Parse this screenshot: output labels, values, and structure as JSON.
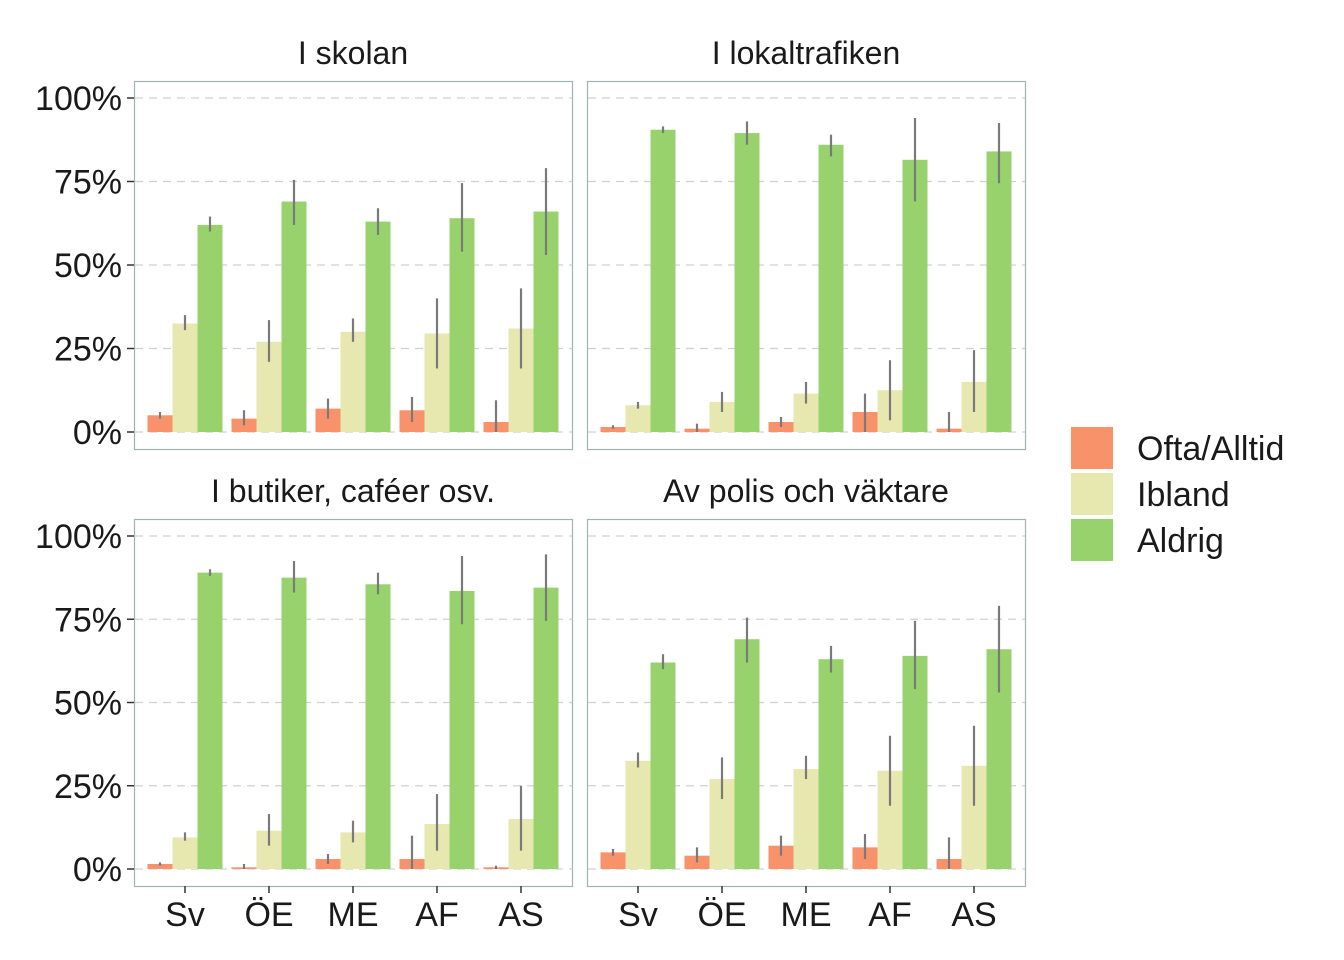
{
  "chart_data": {
    "type": "bar",
    "categories": [
      "Sv",
      "ÖE",
      "ME",
      "AF",
      "AS"
    ],
    "ylim": [
      0,
      100
    ],
    "yticks": [
      "0%",
      "25%",
      "50%",
      "75%",
      "100%"
    ],
    "grid": true,
    "legend_position": "right",
    "legend": [
      {
        "name": "Ofta/Alltid",
        "color": "#f8926a"
      },
      {
        "name": "Ibland",
        "color": "#e6e8b0"
      },
      {
        "name": "Aldrig",
        "color": "#98d26c"
      }
    ],
    "panels": [
      {
        "title": "I skolan",
        "series": [
          {
            "name": "Ofta/Alltid",
            "values": [
              5,
              4,
              7,
              6.5,
              3
            ],
            "err_low": [
              4,
              2,
              4,
              3,
              0
            ],
            "err_high": [
              6,
              6.5,
              10,
              10.5,
              9.5
            ]
          },
          {
            "name": "Ibland",
            "values": [
              32.5,
              27,
              30,
              29.5,
              31
            ],
            "err_low": [
              30.5,
              21,
              27,
              19,
              19
            ],
            "err_high": [
              35,
              33.5,
              34,
              40,
              43
            ]
          },
          {
            "name": "Aldrig",
            "values": [
              62,
              69,
              63,
              64,
              66
            ],
            "err_low": [
              60,
              62,
              59,
              54,
              53
            ],
            "err_high": [
              64.5,
              75.5,
              67,
              74.5,
              79
            ]
          }
        ]
      },
      {
        "title": "I lokaltrafiken",
        "series": [
          {
            "name": "Ofta/Alltid",
            "values": [
              1.5,
              1,
              3,
              6,
              1
            ],
            "err_low": [
              1,
              0,
              1.5,
              0,
              0
            ],
            "err_high": [
              2,
              2.5,
              4.5,
              11.5,
              6
            ]
          },
          {
            "name": "Ibland",
            "values": [
              8,
              9,
              11.5,
              12.5,
              15
            ],
            "err_low": [
              7,
              6,
              8.5,
              3.5,
              6
            ],
            "err_high": [
              9,
              12,
              15,
              21.5,
              24.5
            ]
          },
          {
            "name": "Aldrig",
            "values": [
              90.5,
              89.5,
              86,
              81.5,
              84
            ],
            "err_low": [
              89.5,
              86,
              82.5,
              69,
              74.5
            ],
            "err_high": [
              91.5,
              93,
              89,
              94,
              92.5
            ]
          }
        ]
      },
      {
        "title": "I butiker, caféer osv.",
        "series": [
          {
            "name": "Ofta/Alltid",
            "values": [
              1.5,
              0.5,
              3,
              3,
              0.5
            ],
            "err_low": [
              1,
              0,
              1.5,
              0,
              0
            ],
            "err_high": [
              2,
              1.5,
              4.5,
              10,
              1
            ]
          },
          {
            "name": "Ibland",
            "values": [
              9.5,
              11.5,
              11,
              13.5,
              15
            ],
            "err_low": [
              8.5,
              7,
              8,
              5.5,
              5.5
            ],
            "err_high": [
              11,
              16.5,
              14.5,
              22.5,
              25
            ]
          },
          {
            "name": "Aldrig",
            "values": [
              89,
              87.5,
              85.5,
              83.5,
              84.5
            ],
            "err_low": [
              88,
              83,
              82.5,
              73.5,
              74.5
            ],
            "err_high": [
              90,
              92.5,
              89,
              94,
              94.5
            ]
          }
        ]
      },
      {
        "title": "Av polis och väktare",
        "series": [
          {
            "name": "Ofta/Alltid",
            "values": [
              5,
              4,
              7,
              6.5,
              3
            ],
            "err_low": [
              4,
              2,
              4,
              3,
              0
            ],
            "err_high": [
              6,
              6.5,
              10,
              10.5,
              9.5
            ]
          },
          {
            "name": "Ibland",
            "values": [
              32.5,
              27,
              30,
              29.5,
              31
            ],
            "err_low": [
              30.5,
              21,
              27,
              19,
              19
            ],
            "err_high": [
              35,
              33.5,
              34,
              40,
              43
            ]
          },
          {
            "name": "Aldrig",
            "values": [
              62,
              69,
              63,
              64,
              66
            ],
            "err_low": [
              60,
              62,
              59,
              54,
              53
            ],
            "err_high": [
              64.5,
              75.5,
              67,
              74.5,
              79
            ]
          }
        ]
      }
    ]
  }
}
